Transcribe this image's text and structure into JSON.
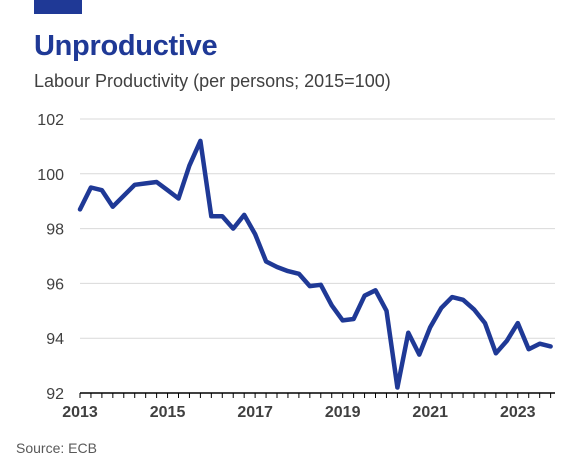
{
  "header": {
    "title": "Unproductive",
    "subtitle": "Labour Productivity (per persons; 2015=100)"
  },
  "footer": {
    "source": "Source: ECB"
  },
  "colors": {
    "accent": "#1f3996",
    "line": "#1f3996",
    "grid": "#d9d9d9",
    "axis": "#000000",
    "tick_text": "#404040"
  },
  "chart_data": {
    "type": "line",
    "title": "Unproductive",
    "subtitle": "Labour Productivity (per persons; 2015=100)",
    "xlabel": "",
    "ylabel": "",
    "xlim": [
      2013,
      2023.85
    ],
    "ylim": [
      92,
      102
    ],
    "yticks": [
      92,
      94,
      96,
      98,
      100,
      102
    ],
    "ytick_labels": [
      "92",
      "94",
      "96",
      "98",
      "100",
      "102"
    ],
    "xticks": [
      2013,
      2015,
      2017,
      2019,
      2021,
      2023
    ],
    "xtick_labels": [
      "2013",
      "2015",
      "2017",
      "2019",
      "2021",
      "2023"
    ],
    "grid": "horizontal",
    "legend": "none",
    "series": [
      {
        "x": [
          2013.0,
          2013.25,
          2013.5,
          2013.75,
          2014.0,
          2014.25,
          2014.5,
          2014.75,
          2015.0,
          2015.25,
          2015.5,
          2015.75,
          2016.0,
          2016.25,
          2016.5,
          2016.75,
          2017.0,
          2017.25,
          2017.5,
          2017.75,
          2018.0,
          2018.25,
          2018.5,
          2018.75,
          2019.0,
          2019.25,
          2019.5,
          2019.75,
          2020.0,
          2020.25,
          2020.5,
          2020.75,
          2021.0,
          2021.25,
          2021.5,
          2021.75,
          2022.0,
          2022.25,
          2022.5,
          2022.75,
          2023.0,
          2023.25,
          2023.5,
          2023.75
        ],
        "values": [
          98.7,
          99.5,
          99.4,
          98.8,
          99.2,
          99.6,
          99.65,
          99.7,
          99.4,
          99.1,
          100.3,
          101.2,
          98.45,
          98.45,
          98.0,
          98.5,
          97.8,
          96.8,
          96.6,
          96.45,
          96.35,
          95.9,
          95.95,
          95.2,
          94.65,
          94.7,
          95.55,
          95.75,
          95.0,
          92.2,
          94.2,
          93.4,
          94.4,
          95.1,
          95.5,
          95.4,
          95.05,
          94.55,
          93.45,
          93.9,
          94.55,
          93.6,
          93.8,
          93.7
        ]
      }
    ]
  }
}
